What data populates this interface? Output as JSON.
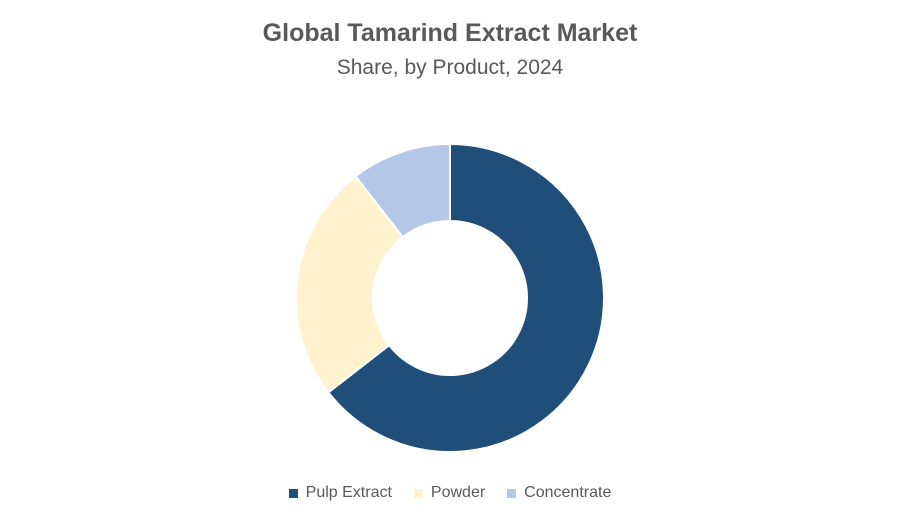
{
  "chart_data": {
    "type": "pie",
    "title": "Global Tamarind Extract Market",
    "subtitle": "Share, by Product, 2024",
    "donut": true,
    "legend_position": "bottom",
    "categories": [
      "Pulp Extract",
      "Powder",
      "Concentrate"
    ],
    "values": [
      64.5,
      25,
      10.5
    ],
    "unit": "%",
    "colors": [
      "#1F4E79",
      "#FFF2CC",
      "#B4C7E7"
    ]
  }
}
